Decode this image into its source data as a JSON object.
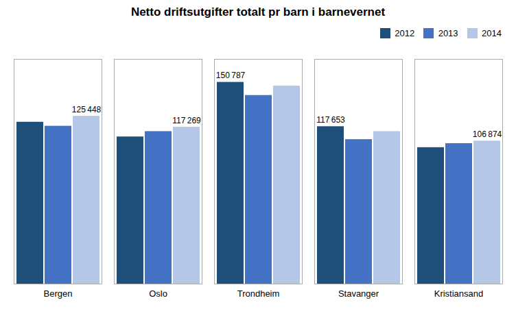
{
  "chart_data": {
    "type": "bar",
    "title": "Netto driftsutgifter totalt pr barn i barnevernet",
    "categories": [
      "Bergen",
      "Oslo",
      "Trondheim",
      "Stavanger",
      "Kristiansand"
    ],
    "series": [
      {
        "name": "2012",
        "color": "#1f4e79",
        "values": [
          121000,
          110000,
          150787,
          117653,
          102000
        ],
        "value_labels": [
          null,
          null,
          "150 787",
          "117 653",
          null
        ]
      },
      {
        "name": "2013",
        "color": "#4472c4",
        "values": [
          118000,
          114000,
          141000,
          108000,
          105000
        ],
        "value_labels": [
          null,
          null,
          null,
          null,
          null
        ]
      },
      {
        "name": "2014",
        "color": "#b4c7e7",
        "values": [
          125448,
          117269,
          148000,
          114000,
          106874
        ],
        "value_labels": [
          "125 448",
          "117 269",
          null,
          null,
          "106 874"
        ]
      }
    ],
    "ylim": [
      0,
      168000
    ],
    "tick_labels": "x",
    "grid": false,
    "legend": "upper right"
  }
}
